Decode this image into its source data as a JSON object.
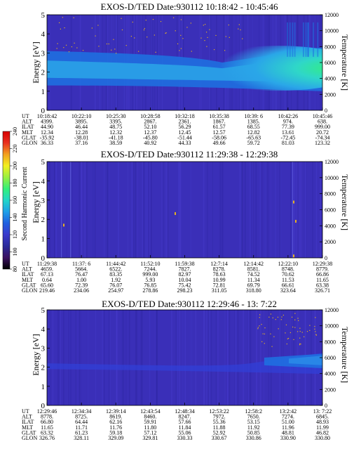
{
  "colors": {
    "background": "#3a2fb8",
    "band_blue": "#1f6fe0",
    "band_light": "#2aa6e8",
    "band_cyan": "#2fd7c8",
    "band_green": "#33f07a",
    "speck": "#e6b020"
  },
  "colorbar": {
    "label": "Second Harmonic Current",
    "ticks": [
      "80",
      "100",
      "120",
      "140",
      "160",
      "180",
      "200",
      "220",
      "240"
    ],
    "stops": [
      "#000000",
      "#3a1060",
      "#2a2a9a",
      "#3a3acc",
      "#1f5fe0",
      "#1ea0e8",
      "#22d6c8",
      "#33f07a",
      "#9af040",
      "#f2f020",
      "#f2a020",
      "#e83020",
      "#d80000"
    ]
  },
  "chart_data": [
    {
      "type": "heatmap",
      "title": "EXOS-D/TED   Date:930112   10:18:42 - 10:45:46",
      "ylabel": "Energy [eV]",
      "y2label": "Temperature [K]",
      "ylim": [
        0,
        5
      ],
      "y2lim": [
        0,
        12000
      ],
      "yticks": [
        "0",
        "1",
        "2",
        "3",
        "4",
        "5"
      ],
      "y2ticks": [
        "0",
        "2000",
        "4000",
        "6000",
        "8000",
        "10000",
        "12000"
      ],
      "table_labels": [
        "UT",
        "ALT",
        "ILAT",
        "MLT",
        "GLAT",
        "GLON"
      ],
      "columns": [
        [
          "10:18:42",
          "4399.",
          "44.90",
          "12.34",
          "-35.92",
          "36.33"
        ],
        [
          "10:22:10",
          "3895.",
          "46.44",
          "12.28",
          "-38.01",
          "37.16"
        ],
        [
          "10:25:30",
          "3395.",
          "48.75",
          "12.32",
          "-41.18",
          "38.59"
        ],
        [
          "10:28:58",
          "2867.",
          "52.10",
          "12.37",
          "-45.80",
          "40.92"
        ],
        [
          "10:32:18",
          "2361.",
          "56.29",
          "12.45",
          "-51.44",
          "44.33"
        ],
        [
          "10:35:38",
          "1867.",
          "61.57",
          "12.57",
          "-58.06",
          "49.66"
        ],
        [
          "10:39: 6",
          "1385.",
          "68.55",
          "12.82",
          "-65.63",
          "59.72"
        ],
        [
          "10:42:26",
          "974.",
          "77.39",
          "13.61",
          "-72.45",
          "81.03"
        ],
        [
          "10:45:46",
          "638.",
          "999.00",
          "20.72",
          "-74.34",
          "123.32"
        ]
      ]
    },
    {
      "type": "heatmap",
      "title": "EXOS-D/TED   Date:930112   11:29:38 - 12:29:38",
      "ylabel": "Energy [eV]",
      "y2label": "Temperature [K]",
      "ylim": [
        0,
        5
      ],
      "y2lim": [
        0,
        12000
      ],
      "yticks": [
        "0",
        "1",
        "2",
        "3",
        "4",
        "5"
      ],
      "y2ticks": [
        "0",
        "2000",
        "4000",
        "6000",
        "8000",
        "10000",
        "12000"
      ],
      "table_labels": [
        "UT",
        "ALT",
        "ILAT",
        "MLT",
        "GLAT",
        "GLON"
      ],
      "columns": [
        [
          "11:29:38",
          "4659.",
          "67.13",
          "0.64",
          "65.60",
          "219.46"
        ],
        [
          "11:37: 6",
          "5664.",
          "76.47",
          "1.00",
          "72.39",
          "234.06"
        ],
        [
          "11:44:42",
          "6522.",
          "83.35",
          "1.92",
          "76.07",
          "254.97"
        ],
        [
          "11:52:10",
          "7244.",
          "999.00",
          "5.93",
          "76.85",
          "278.86"
        ],
        [
          "11:59:38",
          "7827.",
          "82.97",
          "10.04",
          "75.42",
          "298.23"
        ],
        [
          "12:7:14",
          "8278.",
          "78.63",
          "10.99",
          "72.81",
          "311.05"
        ],
        [
          "12:14:42",
          "8581.",
          "74.52",
          "11.34",
          "69.79",
          "318.80"
        ],
        [
          "12:22:10",
          "8748.",
          "70.62",
          "11.53",
          "66.61",
          "323.64"
        ],
        [
          "12:29:38",
          "8779.",
          "66.86",
          "11.65",
          "63.38",
          "326.71"
        ]
      ]
    },
    {
      "type": "heatmap",
      "title": "EXOS-D/TED   Date:930112   12:29:46 - 13: 7:22",
      "ylabel": "Energy [eV]",
      "y2label": "Temperature [K]",
      "ylim": [
        0,
        5
      ],
      "y2lim": [
        0,
        12000
      ],
      "yticks": [
        "0",
        "1",
        "2",
        "3",
        "4",
        "5"
      ],
      "y2ticks": [
        "0",
        "2000",
        "4000",
        "6000",
        "8000",
        "10000",
        "12000"
      ],
      "table_labels": [
        "UT",
        "ALT",
        "ILAT",
        "MLT",
        "GLAT",
        "GLON"
      ],
      "columns": [
        [
          "12:29:46",
          "8778.",
          "66.80",
          "11.65",
          "63.32",
          "326.76"
        ],
        [
          "12:34:34",
          "8725.",
          "64.44",
          "11.71",
          "61.23",
          "328.11"
        ],
        [
          "12:39:14",
          "8619.",
          "62.16",
          "11.76",
          "59.18",
          "329.09"
        ],
        [
          "12:43:54",
          "8460.",
          "59.91",
          "11.80",
          "57.12",
          "329.81"
        ],
        [
          "12:48:34",
          "8247.",
          "57.66",
          "11.84",
          "55.06",
          "330.33"
        ],
        [
          "12:53:22",
          "7972.",
          "55.36",
          "11.88",
          "52.92",
          "330.67"
        ],
        [
          "12:58:2",
          "7650.",
          "53.15",
          "11.92",
          "50.85",
          "330.86"
        ],
        [
          "13:2:42",
          "7274.",
          "51.00",
          "11.96",
          "48.81",
          "330.90"
        ],
        [
          "13: 7:22",
          "6845.",
          "48.93",
          "11.99",
          "46.82",
          "330.80"
        ]
      ]
    }
  ]
}
